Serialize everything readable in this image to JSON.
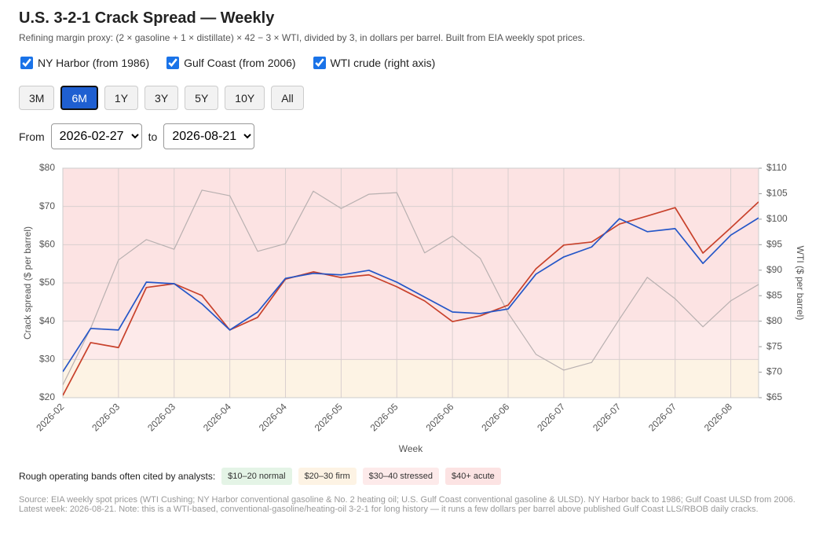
{
  "chart_data": {
    "type": "line",
    "title": "U.S. 3-2-1 Crack Spread — Weekly",
    "subtitle": "Refining margin proxy: (2 × gasoline + 1 × distillate) × 42 − 3 × WTI, divided by 3, in dollars per barrel. Built from EIA weekly spot prices.",
    "x_label": "Week",
    "y_label": "Crack spread ($ per barrel)",
    "y2_label": "WTI ($ per barrel)",
    "categories": [
      "2026-02",
      null,
      "2026-03",
      null,
      "2026-03",
      null,
      "2026-04",
      null,
      "2026-04",
      null,
      "2026-05",
      null,
      "2026-05",
      null,
      "2026-06",
      null,
      "2026-06",
      null,
      "2026-07",
      null,
      "2026-07",
      null,
      "2026-07",
      null,
      "2026-08",
      null
    ],
    "ylim": [
      20,
      80
    ],
    "yticks": [
      {
        "value": 20,
        "label": "$20"
      },
      {
        "value": 30,
        "label": "$30"
      },
      {
        "value": 40,
        "label": "$40"
      },
      {
        "value": 50,
        "label": "$50"
      },
      {
        "value": 60,
        "label": "$60"
      },
      {
        "value": 70,
        "label": "$70"
      },
      {
        "value": 80,
        "label": "$80"
      }
    ],
    "y2lim": [
      65,
      110
    ],
    "y2ticks": [
      {
        "value": 65,
        "label": "$65"
      },
      {
        "value": 70,
        "label": "$70"
      },
      {
        "value": 75,
        "label": "$75"
      },
      {
        "value": 80,
        "label": "$80"
      },
      {
        "value": 85,
        "label": "$85"
      },
      {
        "value": 90,
        "label": "$90"
      },
      {
        "value": 95,
        "label": "$95"
      },
      {
        "value": 100,
        "label": "$100"
      },
      {
        "value": 105,
        "label": "$105"
      },
      {
        "value": 110,
        "label": "$110"
      }
    ],
    "grid": true,
    "series": [
      {
        "name": "NY Harbor (from 1986)",
        "color": "#c8412b",
        "values": [
          20.6,
          34.4,
          33.1,
          48.8,
          49.8,
          46.7,
          37.7,
          41.0,
          51.0,
          52.9,
          51.4,
          52.1,
          49.0,
          45.3,
          39.9,
          41.4,
          44.2,
          53.7,
          59.9,
          60.7,
          65.4,
          67.5,
          69.7,
          57.8,
          64.4,
          71.2
        ]
      },
      {
        "name": "Gulf Coast (from 2006)",
        "color": "#2456c8",
        "values": [
          26.8,
          38.1,
          37.7,
          50.2,
          49.8,
          44.5,
          37.7,
          42.4,
          51.2,
          52.5,
          52.1,
          53.3,
          50.2,
          46.3,
          42.4,
          42.0,
          43.2,
          52.3,
          56.8,
          59.4,
          66.8,
          63.4,
          64.2,
          55.1,
          62.5,
          67.0
        ]
      },
      {
        "name": "WTI crude (right axis)",
        "color": "#b8b0b0",
        "axis": "y2",
        "values": [
          67.5,
          78.6,
          92.0,
          96.0,
          94.1,
          105.7,
          104.6,
          93.7,
          95.2,
          105.5,
          102.1,
          104.9,
          105.2,
          93.4,
          96.7,
          92.3,
          81.6,
          73.5,
          70.4,
          71.9,
          80.4,
          88.6,
          84.4,
          78.9,
          84.0,
          87.2
        ]
      }
    ],
    "bands_intro": "Rough operating bands often cited by analysts:",
    "bands": [
      {
        "from": 10,
        "to": 20,
        "label": "$10–20 normal",
        "color": "#e4f4e6"
      },
      {
        "from": 20,
        "to": 30,
        "label": "$20–30 firm",
        "color": "#fdf3e4"
      },
      {
        "from": 30,
        "to": 40,
        "label": "$30–40 stressed",
        "color": "#fdeaea"
      },
      {
        "from": 40,
        "label": "$40+ acute",
        "color": "#fce3e3"
      }
    ]
  },
  "page": {
    "range_buttons": [
      {
        "label": "3M",
        "selected": false
      },
      {
        "label": "6M",
        "selected": true
      },
      {
        "label": "1Y",
        "selected": false
      },
      {
        "label": "3Y",
        "selected": false
      },
      {
        "label": "5Y",
        "selected": false
      },
      {
        "label": "10Y",
        "selected": false
      },
      {
        "label": "All",
        "selected": false
      }
    ],
    "from_label": "From",
    "from": "2026-02-27",
    "to_label": "to",
    "to": "2026-08-21",
    "source": [
      "Source: EIA weekly spot prices (WTI Cushing; NY Harbor conventional gasoline & No. 2 heating oil; U.S. Gulf Coast conventional gasoline & ULSD). NY Harbor back to 1986; Gulf Coast ULSD from 2006.",
      "Latest week: 2026-08-21. Note: this is a WTI-based, conventional-gasoline/heating-oil 3-2-1 for long history — it runs a few dollars per barrel above published Gulf Coast LLS/RBOB daily cracks."
    ]
  }
}
